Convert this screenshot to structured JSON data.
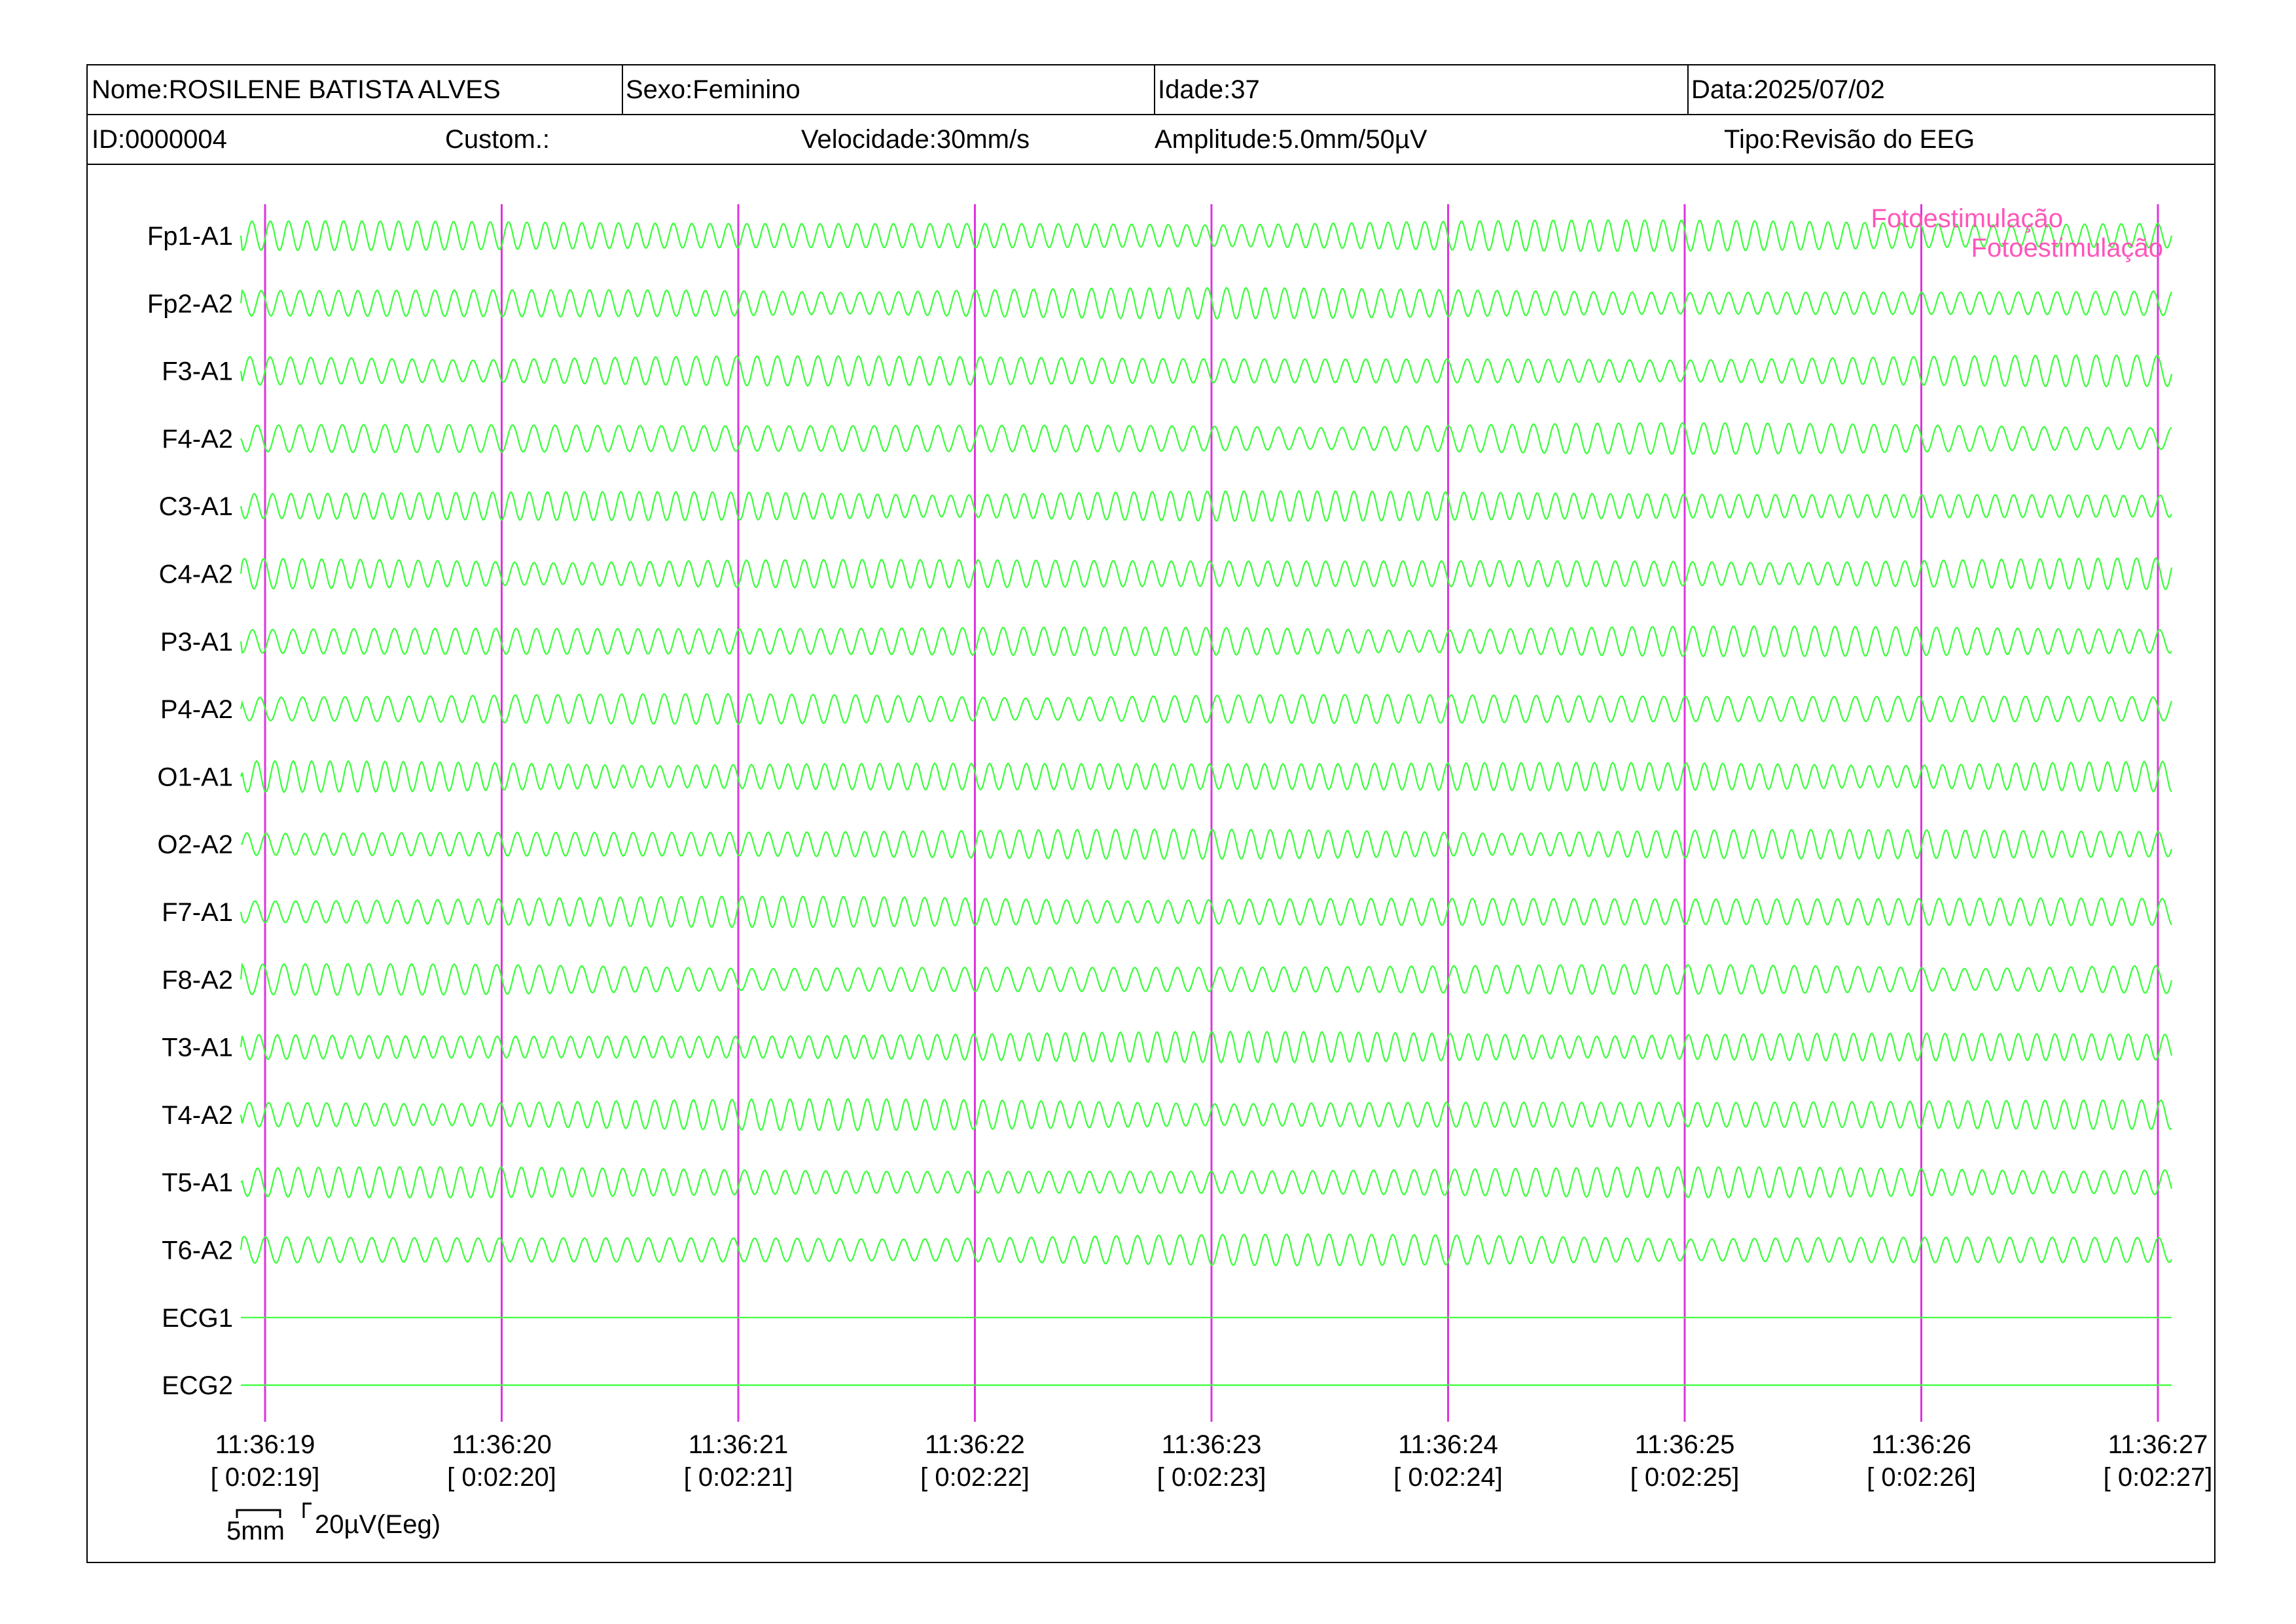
{
  "header": {
    "name": "Nome:ROSILENE BATISTA ALVES",
    "sex": "Sexo:Feminino",
    "age": "Idade:37",
    "date": "Data:2025/07/02",
    "id": "ID:0000004",
    "custom": "Custom.:",
    "speed": "Velocidade:30mm/s",
    "amplitude": "Amplitude:5.0mm/50µV",
    "type": "Tipo:Revisão do EEG"
  },
  "channels": [
    "Fp1-A1",
    "Fp2-A2",
    "F3-A1",
    "F4-A2",
    "C3-A1",
    "C4-A2",
    "P3-A1",
    "P4-A2",
    "O1-A1",
    "O2-A2",
    "F7-A1",
    "F8-A2",
    "T3-A1",
    "T4-A2",
    "T5-A1",
    "T6-A2",
    "ECG1",
    "ECG2"
  ],
  "time_marks": [
    {
      "clock": "11:36:19",
      "elapsed": "[ 0:02:19]"
    },
    {
      "clock": "11:36:20",
      "elapsed": "[ 0:02:20]"
    },
    {
      "clock": "11:36:21",
      "elapsed": "[ 0:02:21]"
    },
    {
      "clock": "11:36:22",
      "elapsed": "[ 0:02:22]"
    },
    {
      "clock": "11:36:23",
      "elapsed": "[ 0:02:23]"
    },
    {
      "clock": "11:36:24",
      "elapsed": "[ 0:02:24]"
    },
    {
      "clock": "11:36:25",
      "elapsed": "[ 0:02:25]"
    },
    {
      "clock": "11:36:26",
      "elapsed": "[ 0:02:26]"
    },
    {
      "clock": "11:36:27",
      "elapsed": "[ 0:02:27]"
    }
  ],
  "annotations": [
    "Fotoestimulação",
    "Fotoestimulação"
  ],
  "scale": {
    "time": "5mm",
    "amplitude": "20µV(Eeg)"
  },
  "colors": {
    "trace": "#39ff39",
    "marker": "#dd33dd",
    "annotation": "#ff55bb"
  }
}
